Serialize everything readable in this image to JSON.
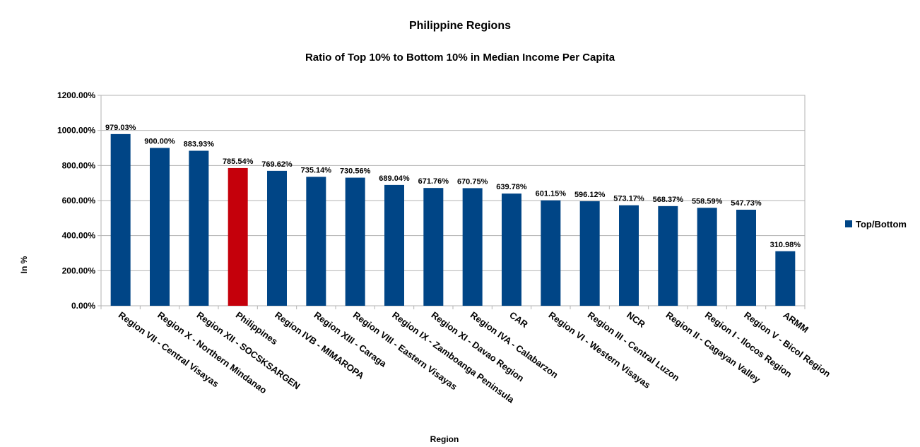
{
  "chart_data": {
    "type": "bar",
    "title": "Philippine Regions",
    "subtitle": "Ratio of Top 10% to Bottom 10% in Median Income Per Capita",
    "xlabel": "Region",
    "ylabel": "In %",
    "ylim": [
      0,
      1200
    ],
    "ytick_step": 200,
    "ytick_format": "percent_2dp",
    "grid": true,
    "legend": "right",
    "series": [
      {
        "name": "Top/Bottom",
        "color": "#004586",
        "highlight_color": "#c5000b",
        "highlight_category": "Philippines",
        "values": [
          979.03,
          900.0,
          883.93,
          785.54,
          769.62,
          735.14,
          730.56,
          689.04,
          671.76,
          670.75,
          639.78,
          601.15,
          596.12,
          573.17,
          568.37,
          558.59,
          547.73,
          310.98
        ]
      }
    ],
    "data_labels": [
      "979.03%",
      "900.00%",
      "883.93%",
      "785.54%",
      "769.62%",
      "735.14%",
      "730.56%",
      "689.04%",
      "671.76%",
      "670.75%",
      "639.78%",
      "601.15%",
      "596.12%",
      "573.17%",
      "568.37%",
      "558.59%",
      "547.73%",
      "310.98%"
    ],
    "categories": [
      "Region VII - Central Visayas",
      "Region X - Northern Mindanao",
      "Region XII - SOCSKSARGEN",
      "Philippines",
      "Region IVB - MIMAROPA",
      "Region XIII - Caraga",
      "Region VIII - Eastern Visayas",
      "Region IX - Zamboanga Peninsula",
      "Region XI - Davao Region",
      "Region IVA - Calabarzon",
      "CAR",
      "Region VI - Western Visayas",
      "Region III - Central Luzon",
      "NCR",
      "Region II - Cagayan Valley",
      "Region I - Ilocos Region",
      "Region V - Bicol Region",
      "ARMM"
    ]
  }
}
